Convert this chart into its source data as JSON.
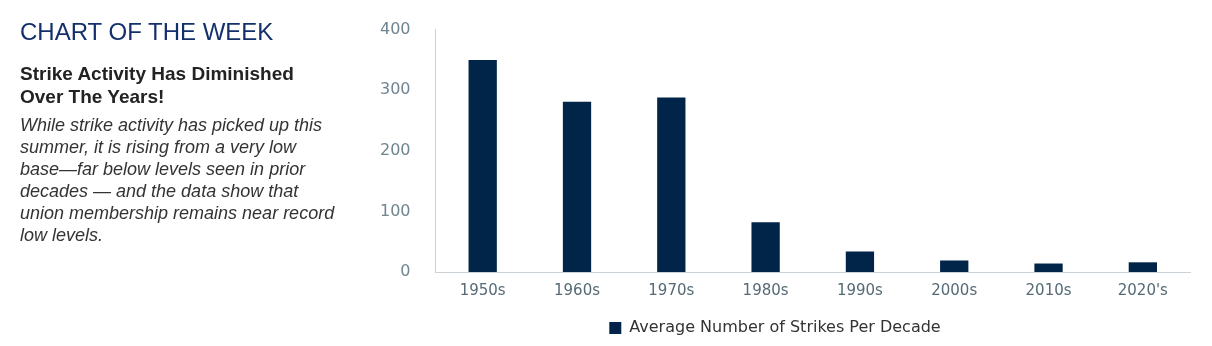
{
  "chart_data": {
    "type": "bar",
    "title": "CHART OF THE WEEK",
    "subtitle": "Strike Activity Has Diminished Over The Years!",
    "annotations": [
      "While strike activity has picked up this summer, it is rising from a very low base—far below levels seen in prior decades — and the data show that union membership remains near record low levels."
    ],
    "categories": [
      "1950s",
      "1960s",
      "1970s",
      "1980s",
      "1990s",
      "2000s",
      "2010s",
      "2020's"
    ],
    "series": [
      {
        "name": "Average Number of Strikes Per Decade",
        "color": "#002548",
        "values": [
          350,
          281,
          288,
          82,
          34,
          19,
          14,
          16
        ]
      }
    ],
    "ylim": [
      0,
      400
    ],
    "yticks": [
      0,
      100,
      200,
      300,
      400
    ],
    "grid": false,
    "legend": "bottom"
  }
}
